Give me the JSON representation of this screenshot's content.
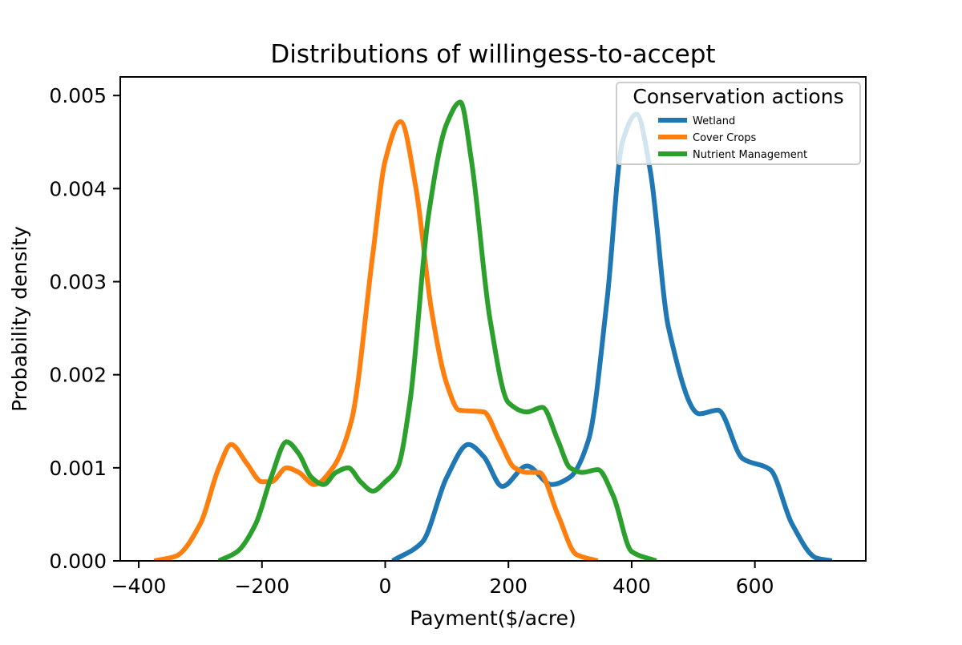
{
  "chart_data": {
    "type": "line",
    "title": "Distributions of willingess-to-accept",
    "xlabel": "Payment($/acre)",
    "ylabel": "Probability density",
    "xlim": [
      -430,
      780
    ],
    "ylim": [
      0,
      0.0052
    ],
    "xticks": [
      -400,
      -200,
      0,
      200,
      400,
      600
    ],
    "xtick_labels": [
      "−400",
      "−200",
      "0",
      "200",
      "400",
      "600"
    ],
    "yticks": [
      0,
      0.001,
      0.002,
      0.003,
      0.004,
      0.005
    ],
    "ytick_labels": [
      "0.000",
      "0.001",
      "0.002",
      "0.003",
      "0.004",
      "0.005"
    ],
    "grid": false,
    "legend": {
      "title": "Conservation actions",
      "position": "top-right"
    },
    "series": [
      {
        "name": "Wetland",
        "color": "#1f77b4",
        "x": [
          12,
          60,
          100,
          135,
          160,
          190,
          230,
          270,
          300,
          330,
          360,
          385,
          408,
          430,
          460,
          510,
          540,
          580,
          625,
          660,
          700,
          725
        ],
        "y": [
          0.0,
          0.0002,
          0.0009,
          0.00125,
          0.00112,
          0.0008,
          0.00102,
          0.00082,
          0.0009,
          0.0013,
          0.0028,
          0.0045,
          0.0048,
          0.0042,
          0.0025,
          0.00158,
          0.00162,
          0.0011,
          0.00098,
          0.0004,
          3e-05,
          0.0
        ]
      },
      {
        "name": "Cover Crops",
        "color": "#ff7f0e",
        "x": [
          -375,
          -340,
          -300,
          -270,
          -250,
          -225,
          -200,
          -185,
          -160,
          -140,
          -115,
          -85,
          -55,
          -20,
          0,
          25,
          50,
          75,
          100,
          120,
          160,
          185,
          210,
          230,
          250,
          280,
          310,
          345
        ],
        "y": [
          0.0,
          5e-05,
          0.0004,
          0.001,
          0.00125,
          0.00105,
          0.00085,
          0.00085,
          0.001,
          0.00095,
          0.00082,
          0.001,
          0.0015,
          0.0033,
          0.0043,
          0.00472,
          0.004,
          0.0027,
          0.0019,
          0.00162,
          0.0016,
          0.0013,
          0.001,
          0.00095,
          0.00095,
          0.0005,
          7e-05,
          0.0
        ]
      },
      {
        "name": "Nutrient Management",
        "color": "#2ca02c",
        "x": [
          -270,
          -240,
          -210,
          -185,
          -160,
          -140,
          -120,
          -100,
          -80,
          -60,
          -40,
          -20,
          0,
          20,
          40,
          70,
          100,
          122,
          140,
          170,
          200,
          230,
          255,
          280,
          300,
          320,
          345,
          370,
          400,
          440
        ],
        "y": [
          0.0,
          0.0001,
          0.0004,
          0.0009,
          0.00128,
          0.00115,
          0.0009,
          0.00082,
          0.00095,
          0.001,
          0.00085,
          0.00075,
          0.00085,
          0.001,
          0.0017,
          0.0037,
          0.0047,
          0.00493,
          0.0043,
          0.0026,
          0.0017,
          0.0016,
          0.00165,
          0.0013,
          0.001,
          0.00095,
          0.00098,
          0.0007,
          0.0001,
          0.0
        ]
      }
    ]
  }
}
